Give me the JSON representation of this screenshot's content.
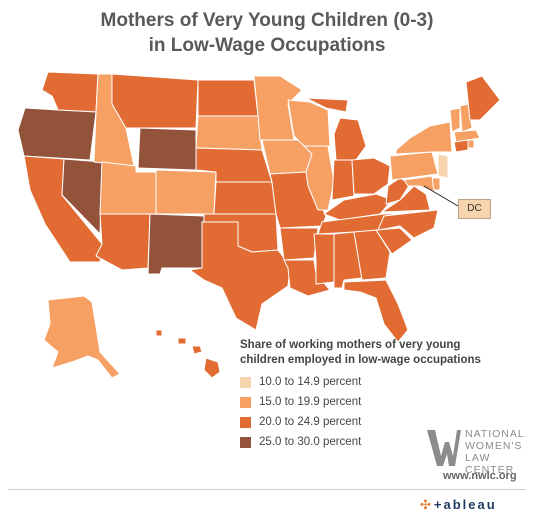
{
  "title_line1": "Mothers of Very Young Children (0-3)",
  "title_line2": "in Low-Wage Occupations",
  "legend": {
    "title_line1": "Share of working mothers of very young",
    "title_line2": "children employed in low-wage occupations",
    "items": [
      {
        "label": "10.0 to 14.9 percent",
        "color": "#f6d4ad"
      },
      {
        "label": "15.0 to 19.9 percent",
        "color": "#f6a064"
      },
      {
        "label": "20.0 to 24.9 percent",
        "color": "#e16b32"
      },
      {
        "label": "25.0 to 30.0 percent",
        "color": "#93533b"
      }
    ]
  },
  "dc_label": "DC",
  "logo": {
    "line1": "NATIONAL",
    "line2": "WOMEN'S",
    "line3": "LAW CENTER",
    "url": "www.nwlc.org"
  },
  "tableau_label": "+ableau",
  "categories": {
    "light": "#f6d4ad",
    "medium": "#f6a064",
    "high": "#e16b32",
    "top": "#93533b"
  }
}
